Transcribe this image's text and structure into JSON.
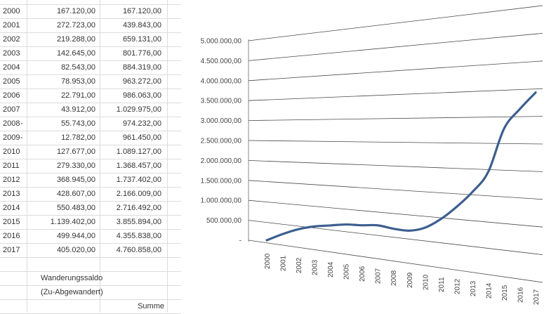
{
  "table": {
    "rows": [
      {
        "year": "2000",
        "sign": "",
        "value": "167.120,00",
        "sum": "167.120,00"
      },
      {
        "year": "2001",
        "sign": "",
        "value": "272.723,00",
        "sum": "439.843,00"
      },
      {
        "year": "2002",
        "sign": "",
        "value": "219.288,00",
        "sum": "659.131,00"
      },
      {
        "year": "2003",
        "sign": "",
        "value": "142.645,00",
        "sum": "801.776,00"
      },
      {
        "year": "2004",
        "sign": "",
        "value": "82.543,00",
        "sum": "884.319,00"
      },
      {
        "year": "2005",
        "sign": "",
        "value": "78.953,00",
        "sum": "963.272,00"
      },
      {
        "year": "2006",
        "sign": "",
        "value": "22.791,00",
        "sum": "986.063,00"
      },
      {
        "year": "2007",
        "sign": "",
        "value": "43.912,00",
        "sum": "1.029.975,00"
      },
      {
        "year": "2008",
        "sign": "-",
        "value": "55.743,00",
        "sum": "974.232,00"
      },
      {
        "year": "2009",
        "sign": "-",
        "value": "12.782,00",
        "sum": "961.450,00"
      },
      {
        "year": "2010",
        "sign": "",
        "value": "127.677,00",
        "sum": "1.089.127,00"
      },
      {
        "year": "2011",
        "sign": "",
        "value": "279.330,00",
        "sum": "1.368.457,00"
      },
      {
        "year": "2012",
        "sign": "",
        "value": "368.945,00",
        "sum": "1.737.402,00"
      },
      {
        "year": "2013",
        "sign": "",
        "value": "428.607,00",
        "sum": "2.166.009,00"
      },
      {
        "year": "2014",
        "sign": "",
        "value": "550.483,00",
        "sum": "2.716.492,00"
      },
      {
        "year": "2015",
        "sign": "",
        "value": "1.139.402,00",
        "sum": "3.855.894,00"
      },
      {
        "year": "2016",
        "sign": "",
        "value": "499.944,00",
        "sum": "4.355.838,00"
      },
      {
        "year": "2017",
        "sign": "",
        "value": "405.020,00",
        "sum": "4.760.858,00"
      }
    ],
    "label_line1": "Wanderungssaldo",
    "label_line2": "(Zu-Abgewandert)",
    "label_sum": "Summe"
  },
  "chart_data": {
    "type": "line",
    "x": [
      "2000",
      "2001",
      "2002",
      "2003",
      "2004",
      "2005",
      "2006",
      "2007",
      "2008",
      "2009",
      "2010",
      "2011",
      "2012",
      "2013",
      "2014",
      "2015",
      "2016",
      "2017"
    ],
    "series": [
      {
        "values": [
          167120,
          439843,
          659131,
          801776,
          884319,
          963272,
          986063,
          1029975,
          974232,
          961450,
          1089127,
          1368457,
          1737402,
          2166009,
          2716492,
          3855894,
          4355838,
          4760858
        ]
      }
    ],
    "yticks": [
      "-",
      "500.000,00",
      "1.000.000,00",
      "1.500.000,00",
      "2.000.000,00",
      "2.500.000,00",
      "3.000.000,00",
      "3.500.000,00",
      "4.000.000,00",
      "4.500.000,00",
      "5.000.000,00"
    ],
    "ylim": [
      0,
      5000000
    ],
    "grid": true,
    "line_color": "#3d5f8f"
  }
}
